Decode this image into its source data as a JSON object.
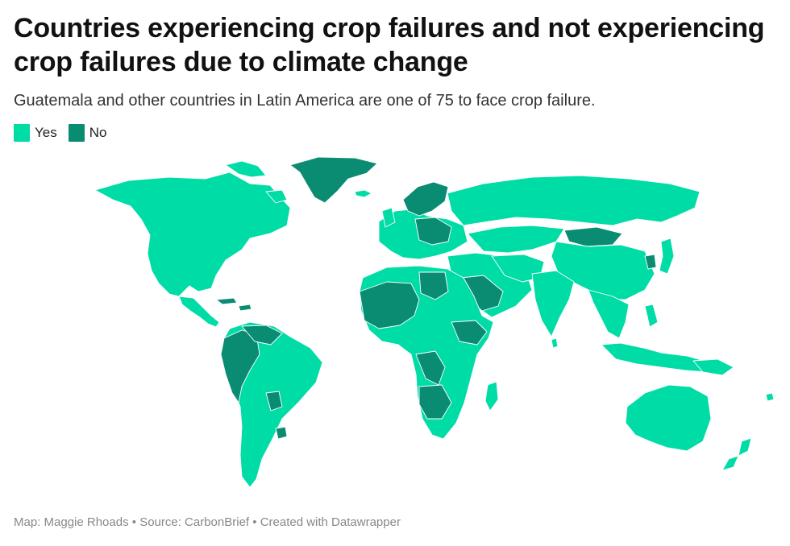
{
  "header": {
    "title": "Countries experiencing crop failures and not experiencing crop failures due to climate change",
    "subtitle": "Guatemala and other countries in Latin America are one of 75 to face crop failure."
  },
  "legend": {
    "items": [
      {
        "label": "Yes",
        "color": "#00dca6"
      },
      {
        "label": "No",
        "color": "#0a8c73"
      }
    ]
  },
  "map": {
    "projection": "Robinson (world)",
    "border_color": "#ffffff",
    "yes_color": "#00dca6",
    "no_color": "#0a8c73"
  },
  "footer": {
    "map_credit": "Map: Maggie Rhoads",
    "separator": " • ",
    "source": "Source: CarbonBrief",
    "created_with": "Created with Datawrapper"
  }
}
